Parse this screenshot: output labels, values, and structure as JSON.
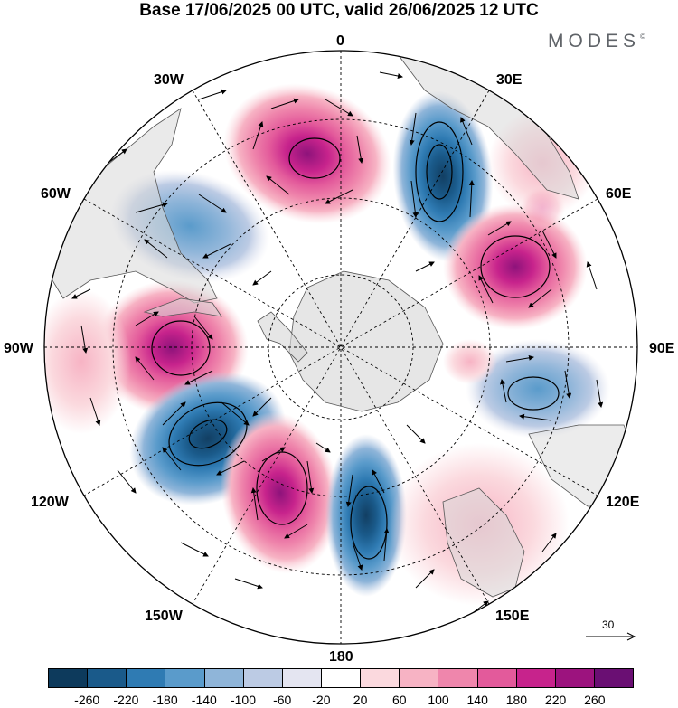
{
  "title": "Base 17/06/2025 00 UTC, valid 26/06/2025 12 UTC",
  "brand": "MODES",
  "brand_mark": "©",
  "longitude_labels": {
    "n": "0",
    "ne": "30E",
    "ene": "60E",
    "e": "90E",
    "ese": "120E",
    "se": "150E",
    "s": "180",
    "sw": "150W",
    "wsw": "120W",
    "w": "90W",
    "wnw": "60W",
    "nw": "30W"
  },
  "reference_vector": {
    "label": "30"
  },
  "colorbar": {
    "colors": [
      "#0d3a5c",
      "#1a5a8a",
      "#2f7bb3",
      "#5a9bcb",
      "#8fb5d9",
      "#bccbe4",
      "#e4e5f1",
      "#ffffff",
      "#fbd9de",
      "#f7b3c4",
      "#ef86ac",
      "#e35a9b",
      "#c7238c",
      "#9c137e",
      "#6a0f73"
    ],
    "ticks": [
      "-260",
      "-220",
      "-180",
      "-140",
      "-100",
      "-60",
      "-20",
      "20",
      "60",
      "100",
      "140",
      "180",
      "220",
      "260"
    ]
  }
}
